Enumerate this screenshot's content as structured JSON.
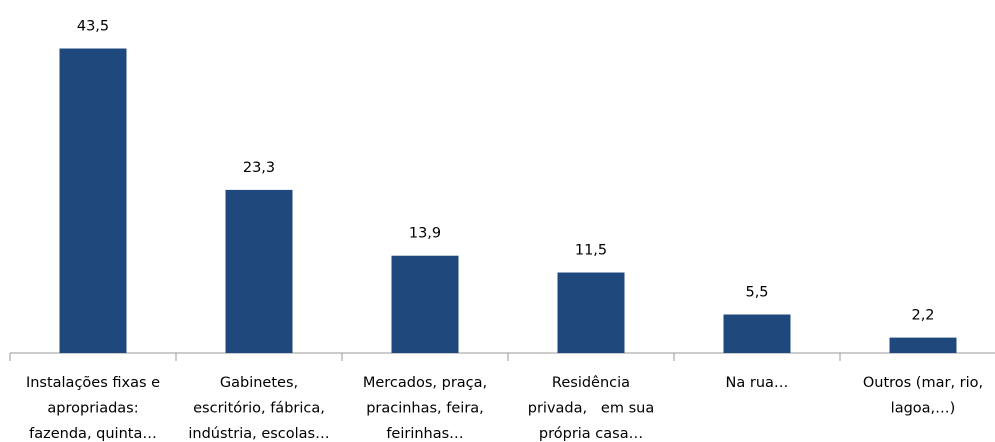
{
  "chart_data": {
    "type": "bar",
    "categories": [
      [
        "Instalações fixas e",
        "apropriadas:",
        "fazenda, quinta…"
      ],
      [
        "Gabinetes,",
        "escritório, fábrica,",
        "indústria, escolas…"
      ],
      [
        "Mercados, praça,",
        "pracinhas, feira,",
        "feirinhas…"
      ],
      [
        "Residência",
        "privada,   em sua",
        "própria casa…"
      ],
      [
        "Na rua…"
      ],
      [
        "Outros (mar, rio,",
        "lagoa,…)"
      ]
    ],
    "values": [
      43.5,
      23.3,
      13.9,
      11.5,
      5.5,
      2.2
    ],
    "value_labels": [
      "43,5",
      "23,3",
      "13,9",
      "11,5",
      "5,5",
      "2,2"
    ],
    "color": "#1f497d",
    "ylim": [
      0,
      45
    ]
  }
}
